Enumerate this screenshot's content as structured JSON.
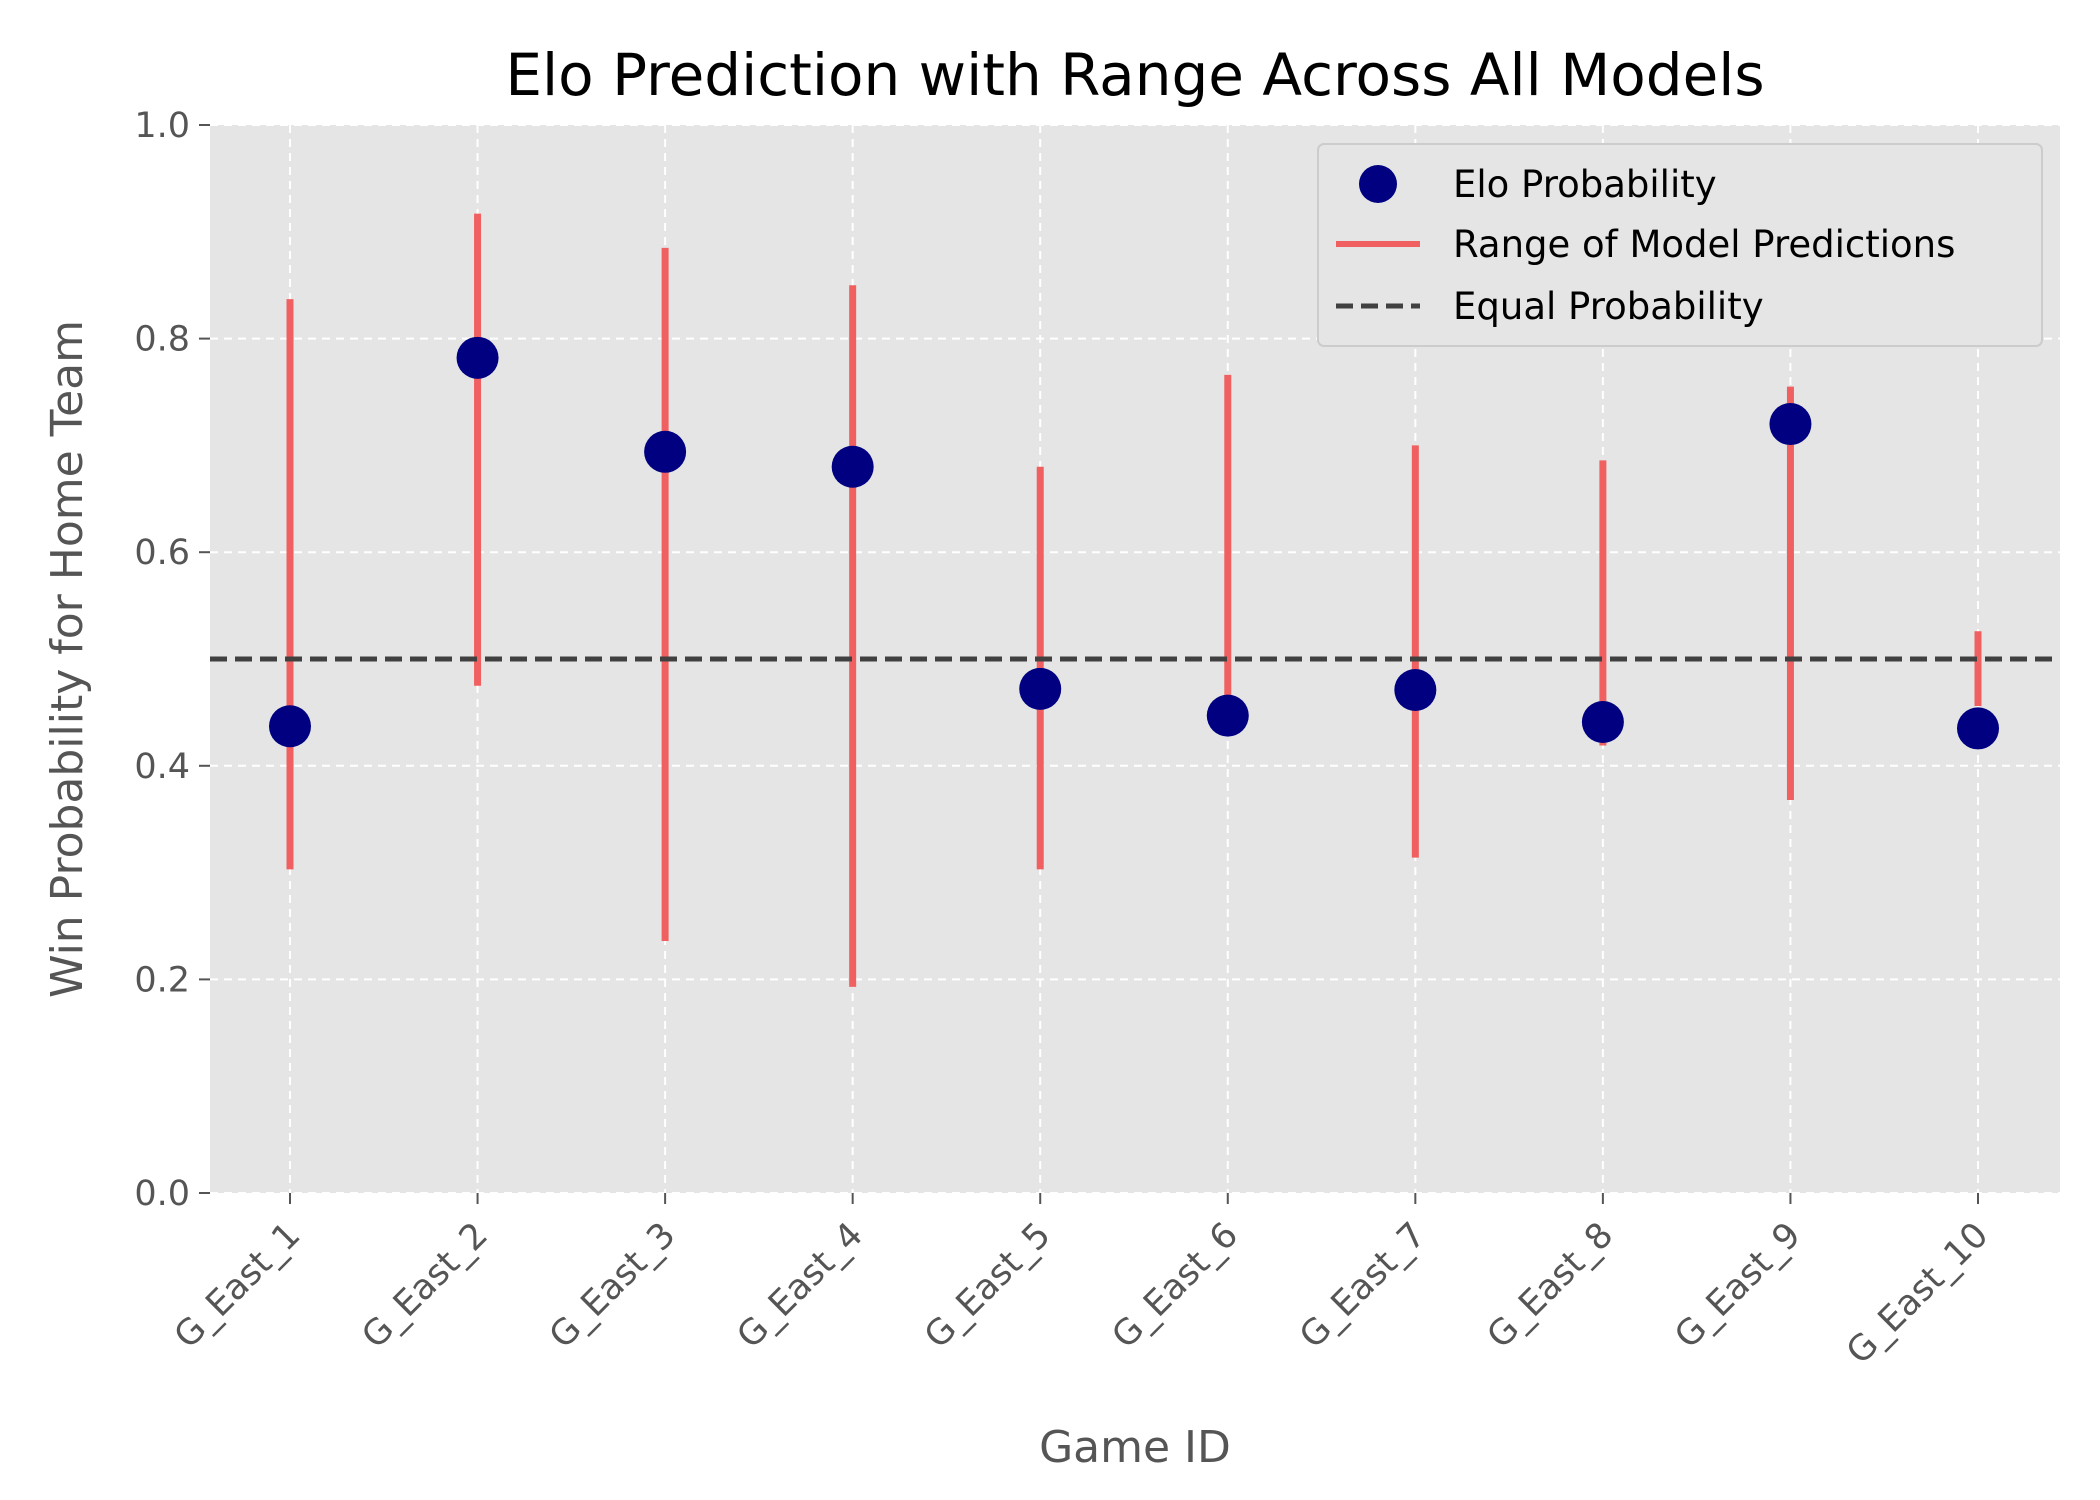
{
  "chart_data": {
    "type": "scatter",
    "title": "Elo Prediction with Range Across All Models",
    "xlabel": "Game ID",
    "ylabel": "Win Probability for Home Team",
    "ylim": [
      0.0,
      1.0
    ],
    "yticks": [
      "0.0",
      "0.2",
      "0.4",
      "0.6",
      "0.8",
      "1.0"
    ],
    "grid": true,
    "legend_position": "top-right",
    "categories": [
      "G_East_1",
      "G_East_2",
      "G_East_3",
      "G_East_4",
      "G_East_5",
      "G_East_6",
      "G_East_7",
      "G_East_8",
      "G_East_9",
      "G_East_10"
    ],
    "series": [
      {
        "name": "Elo Probability",
        "kind": "points",
        "color": "#000080",
        "values": [
          0.437,
          0.782,
          0.694,
          0.68,
          0.472,
          0.447,
          0.471,
          0.441,
          0.72,
          0.435
        ]
      },
      {
        "name": "Range of Model Predictions",
        "kind": "vertical-ranges",
        "color": "#f06060",
        "low": [
          0.303,
          0.475,
          0.236,
          0.193,
          0.303,
          0.453,
          0.314,
          0.419,
          0.368,
          0.456
        ],
        "high": [
          0.837,
          0.917,
          0.885,
          0.85,
          0.68,
          0.766,
          0.7,
          0.686,
          0.755,
          0.526
        ]
      },
      {
        "name": "Equal Probability",
        "kind": "reference-line",
        "color": "#404040",
        "value": 0.5
      }
    ]
  }
}
